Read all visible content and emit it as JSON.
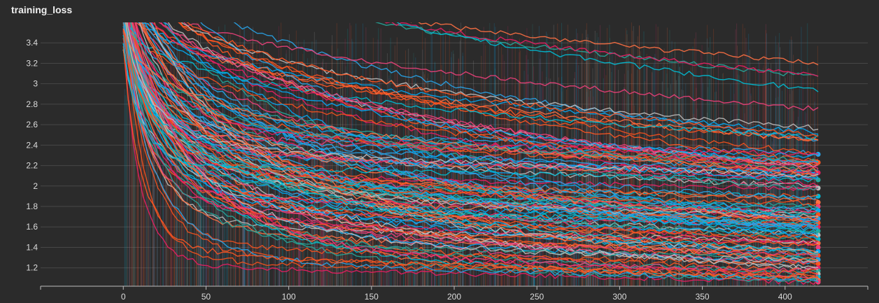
{
  "window": {
    "title": "training_loss"
  },
  "theme": {
    "background": "#2b2b2b",
    "grid": "#474747",
    "axis": "#bdbdbd",
    "text": "#dcdcdc"
  },
  "palette": [
    "#29a3e8",
    "#ff5722",
    "#e91e63",
    "#26a69a",
    "#bdbdbd",
    "#00bcd4",
    "#ff7043",
    "#ec407a",
    "#03a9f4",
    "#f4511e"
  ],
  "chart_data": {
    "type": "line",
    "title": "training_loss",
    "xlabel": "",
    "ylabel": "",
    "xlim": [
      -50,
      450
    ],
    "ylim": [
      1.02,
      3.6
    ],
    "xticks": [
      0,
      50,
      100,
      150,
      200,
      250,
      300,
      350,
      400
    ],
    "yticks": [
      1.2,
      1.4,
      1.6,
      1.8,
      2,
      2.2,
      2.4,
      2.6,
      2.8,
      3,
      3.2,
      3.4
    ],
    "grid": true,
    "legend": "none",
    "num_series": 120,
    "x_range": [
      0,
      420
    ],
    "final_values_range": [
      1.06,
      2.31
    ],
    "final_values": [
      2.31,
      2.23,
      2.13,
      2.06,
      1.98,
      1.9,
      1.84,
      1.8,
      1.76,
      1.72,
      1.68,
      1.64,
      1.6,
      1.56,
      1.52,
      1.48,
      1.44,
      1.4,
      1.36,
      1.32,
      1.28,
      1.24,
      1.2,
      1.17,
      1.14,
      1.11,
      1.08,
      1.06
    ]
  }
}
